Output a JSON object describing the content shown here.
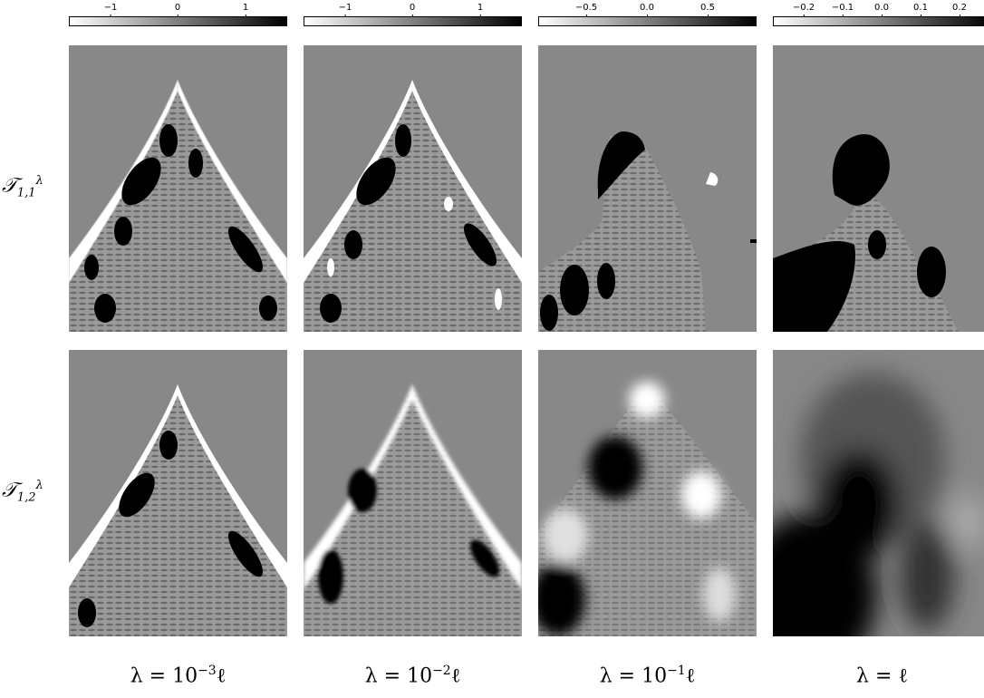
{
  "colorbars": [
    {
      "ticks": [
        "−1",
        "0",
        "1"
      ],
      "range": [
        -1.6,
        1.6
      ],
      "tick_values": [
        -1,
        0,
        1
      ]
    },
    {
      "ticks": [
        "−1",
        "0",
        "1"
      ],
      "range": [
        -1.6,
        1.6
      ],
      "tick_values": [
        -1,
        0,
        1
      ]
    },
    {
      "ticks": [
        "−0.5",
        "0.0",
        "0.5"
      ],
      "range": [
        -0.9,
        0.9
      ],
      "tick_values": [
        -0.5,
        0.0,
        0.5
      ]
    },
    {
      "ticks": [
        "−0.2",
        "−0.1",
        "0.0",
        "0.1",
        "0.2"
      ],
      "range": [
        -0.28,
        0.28
      ],
      "tick_values": [
        -0.2,
        -0.1,
        0.0,
        0.1,
        0.2
      ]
    }
  ],
  "rows": [
    {
      "base": "𝒯",
      "sub": "1,1",
      "sup": "λ"
    },
    {
      "base": "𝒯",
      "sub": "1,2",
      "sup": "λ"
    }
  ],
  "columns": [
    {
      "prefix": "λ = 10",
      "exp": "−3",
      "suffix": "ℓ"
    },
    {
      "prefix": "λ = 10",
      "exp": "−2",
      "suffix": "ℓ"
    },
    {
      "prefix": "λ = 10",
      "exp": "−1",
      "suffix": "ℓ"
    },
    {
      "prefix": "λ = ",
      "exp": "",
      "suffix": "ℓ"
    }
  ],
  "colors": {
    "background_gray": "#888888",
    "white": "#ffffff",
    "black": "#000000"
  }
}
